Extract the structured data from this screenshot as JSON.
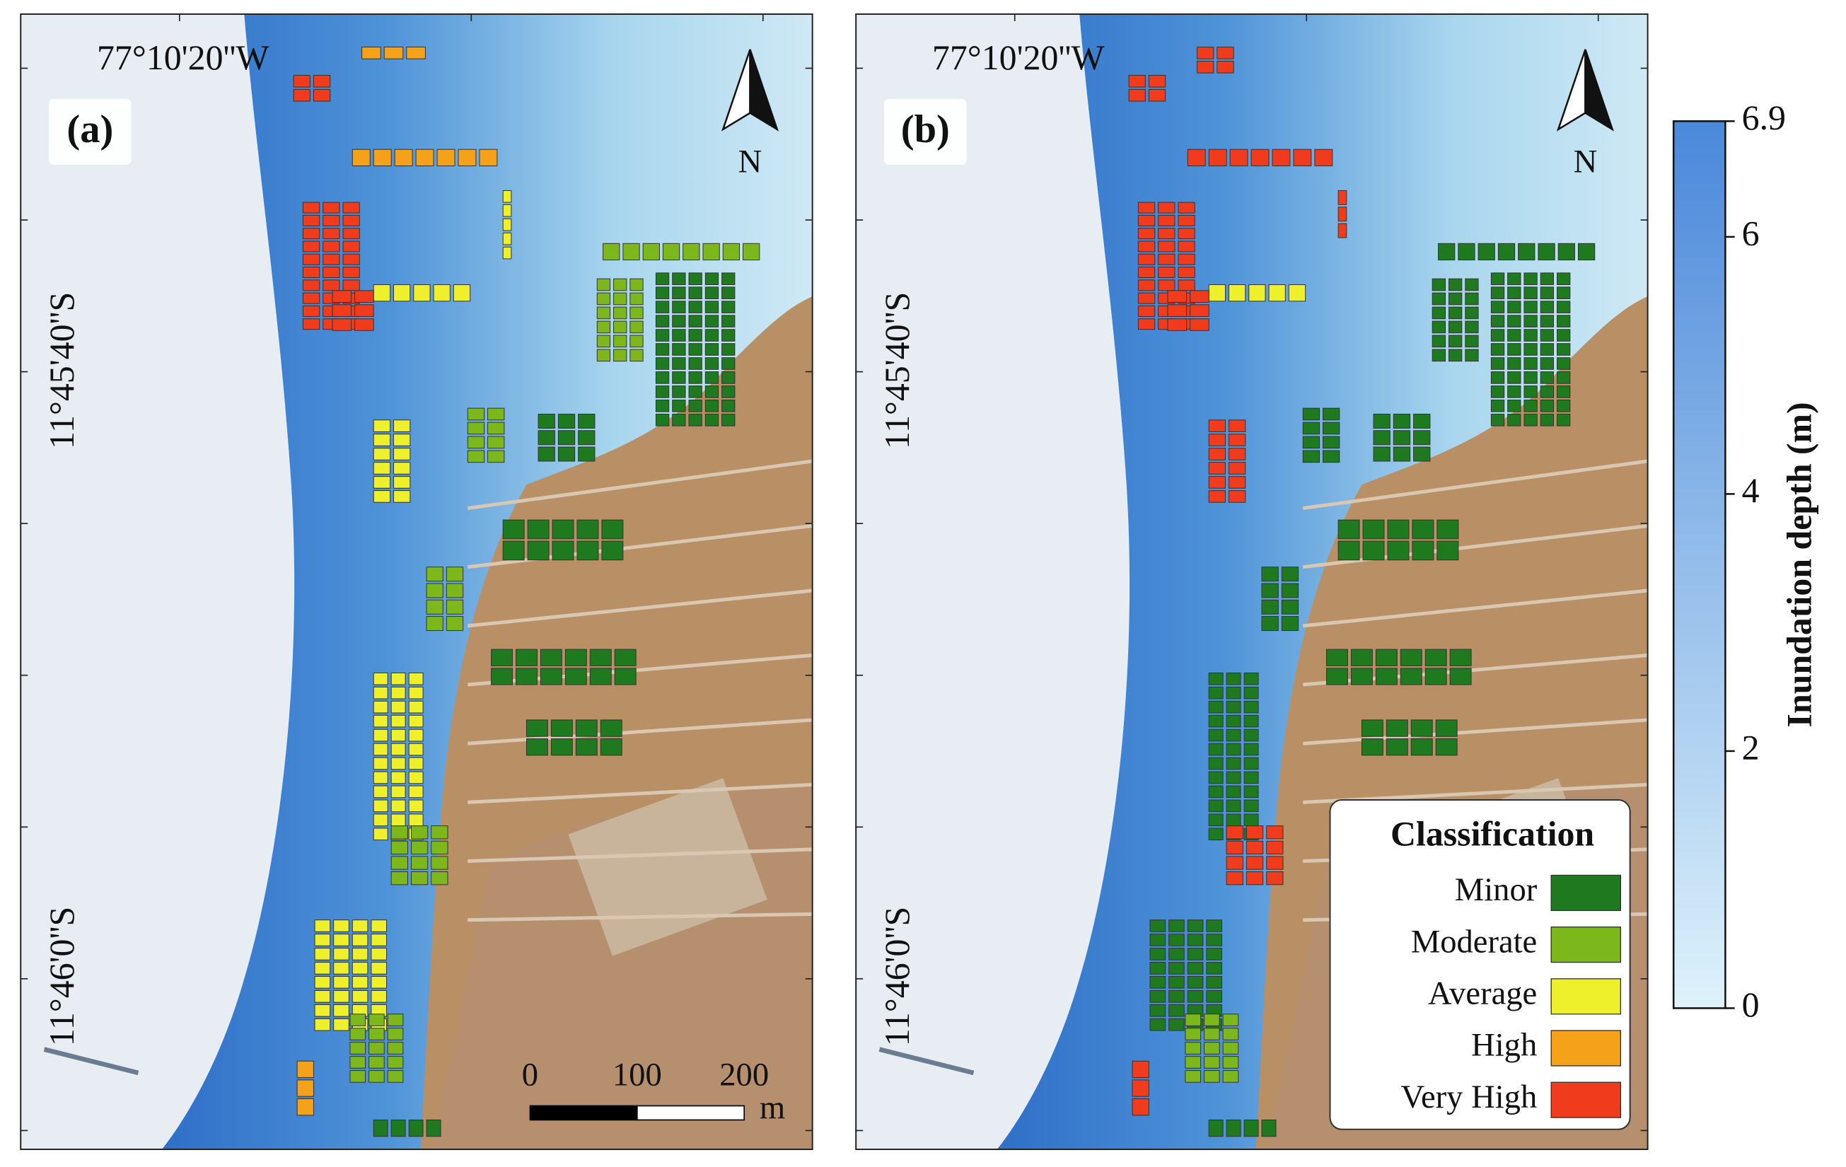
{
  "panels": [
    {
      "label": "(a)",
      "longitude_label": "77°10'20''W",
      "latitude_labels": [
        "11°45'40''S",
        "11°46'0''S"
      ],
      "north_label": "N"
    },
    {
      "label": "(b)",
      "longitude_label": "77°10'20''W",
      "latitude_labels": [
        "11°45'40''S",
        "11°46'0''S"
      ],
      "north_label": "N"
    }
  ],
  "scale_bar": {
    "ticks": [
      0,
      100,
      200
    ],
    "unit": "m"
  },
  "colorbar": {
    "title": "Inundation depth (m)",
    "lim": [
      0,
      6.9
    ],
    "ticks": [
      0,
      2,
      4,
      6,
      6.9
    ],
    "colors": [
      "#def2fb",
      "#4a88da"
    ]
  },
  "legend": {
    "title": "Classification",
    "items": [
      {
        "label": "Minor",
        "color": "#1f7a1f"
      },
      {
        "label": "Moderate",
        "color": "#7cb81c"
      },
      {
        "label": "Average",
        "color": "#eef02c"
      },
      {
        "label": "High",
        "color": "#f5a11a"
      },
      {
        "label": "Very High",
        "color": "#f03c1c"
      }
    ]
  }
}
